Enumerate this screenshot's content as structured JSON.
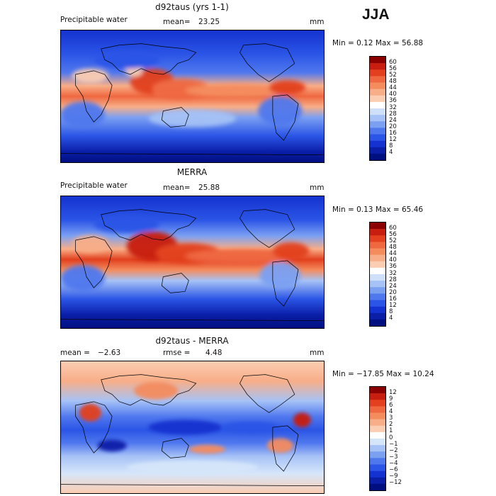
{
  "season": "JJA",
  "chart_data": [
    {
      "type": "heatmap",
      "title": "d92taus (yrs 1-1)",
      "field": "Precipitable water",
      "stat1_label": "mean=",
      "stat1_value": "23.25",
      "units": "mm",
      "range_text": "Min =    0.12 Max =   56.88",
      "min": 0.12,
      "max": 56.88,
      "colorbar": {
        "levels": [
          "60",
          "56",
          "52",
          "48",
          "44",
          "40",
          "36",
          "32",
          "28",
          "24",
          "20",
          "16",
          "12",
          "8",
          "4"
        ],
        "colors": [
          "#8b0000",
          "#c81e10",
          "#e2401e",
          "#ef6840",
          "#f48c5e",
          "#f8ae88",
          "#fbcdb2",
          "#ffffff",
          "#cfe0fa",
          "#a6c2f6",
          "#7ba0f2",
          "#5078ee",
          "#2b55e6",
          "#1432cf",
          "#0a1ea8",
          "#000f80"
        ]
      }
    },
    {
      "type": "heatmap",
      "title": "MERRA",
      "field": "Precipitable water",
      "stat1_label": "mean=",
      "stat1_value": "25.88",
      "units": "mm",
      "range_text": "Min =    0.13 Max =   65.46",
      "min": 0.13,
      "max": 65.46,
      "colorbar": {
        "levels": [
          "60",
          "56",
          "52",
          "48",
          "44",
          "40",
          "36",
          "32",
          "28",
          "24",
          "20",
          "16",
          "12",
          "8",
          "4"
        ],
        "colors": [
          "#8b0000",
          "#c81e10",
          "#e2401e",
          "#ef6840",
          "#f48c5e",
          "#f8ae88",
          "#fbcdb2",
          "#ffffff",
          "#cfe0fa",
          "#a6c2f6",
          "#7ba0f2",
          "#5078ee",
          "#2b55e6",
          "#1432cf",
          "#0a1ea8",
          "#000f80"
        ]
      }
    },
    {
      "type": "heatmap",
      "title": "d92taus - MERRA",
      "stat1_label": "mean =",
      "stat1_value": "−2.63",
      "stat2_label": "rmse =",
      "stat2_value": "4.48",
      "units": "mm",
      "range_text": "Min = −17.85 Max =   10.24",
      "min": -17.85,
      "max": 10.24,
      "colorbar": {
        "levels": [
          "12",
          "9",
          "6",
          "4",
          "3",
          "2",
          "1",
          "0",
          "−1",
          "−2",
          "−3",
          "−4",
          "−6",
          "−9",
          "−12"
        ],
        "colors": [
          "#8b0000",
          "#c81e10",
          "#e2401e",
          "#ef6840",
          "#f48c5e",
          "#f8ae88",
          "#fbcdb2",
          "#ffffff",
          "#d6e6fa",
          "#a6c2f6",
          "#7ba0f2",
          "#5078ee",
          "#2b55e6",
          "#1432cf",
          "#0a1ea8",
          "#000f80"
        ]
      }
    }
  ]
}
